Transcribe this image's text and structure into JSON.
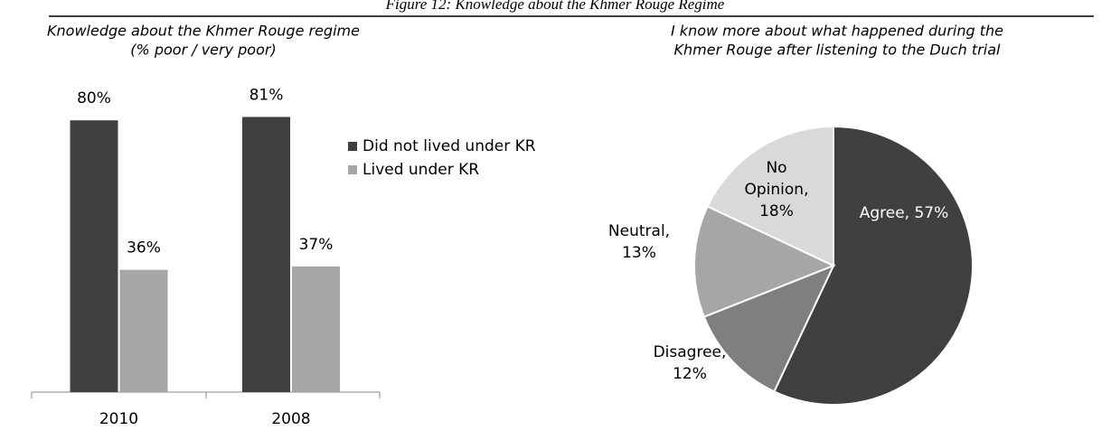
{
  "caption": "Figure 12: Knowledge about the Khmer Rouge Regime",
  "chart_data": [
    {
      "type": "bar",
      "title": "Knowledge about the Khmer Rouge regime",
      "subtitle": "(% poor / very poor)",
      "categories": [
        "2010",
        "2008"
      ],
      "series": [
        {
          "name": "Did not lived under KR",
          "color": "#404040",
          "values": [
            80,
            81
          ],
          "value_labels": [
            "80%",
            "81%"
          ]
        },
        {
          "name": "Lived under KR",
          "color": "#a6a6a6",
          "values": [
            36,
            37
          ],
          "value_labels": [
            "36%",
            "37%"
          ]
        }
      ],
      "legend": "right"
    },
    {
      "type": "pie",
      "title": "I know more about what happened during the",
      "subtitle": "Khmer Rouge after listening to the Duch trial",
      "labels": [
        "Agree, 57%",
        "Disagree, 12%",
        "Neutral, 13%",
        "No Opinion, 18%"
      ],
      "values": [
        57,
        12,
        13,
        18
      ],
      "colors": [
        "#404040",
        "#7f7f7f",
        "#a6a6a6",
        "#d9d9d9"
      ],
      "label_colors": [
        "#ffffff",
        "#000000",
        "#000000",
        "#000000"
      ]
    }
  ]
}
